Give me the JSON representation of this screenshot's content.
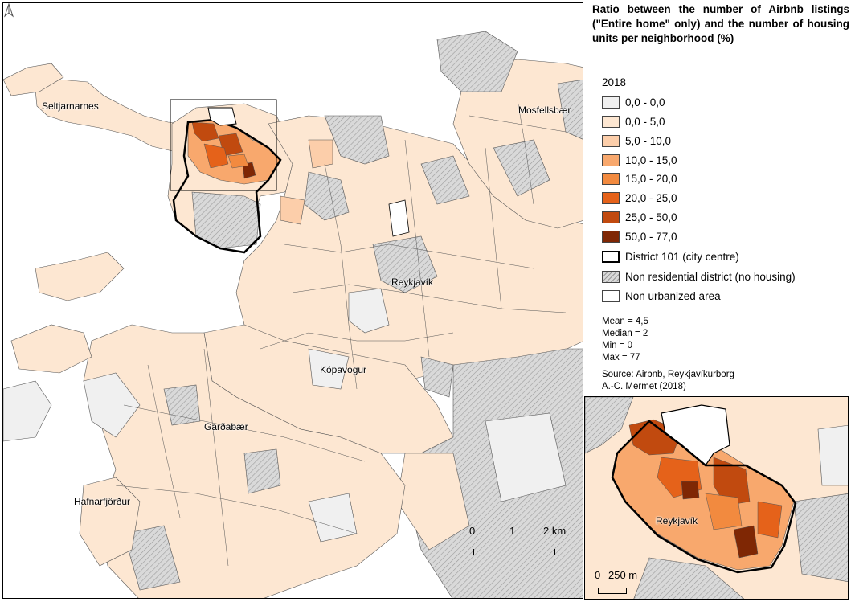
{
  "legend": {
    "title": "Ratio between the number of Airbnb listings (\"Entire home\" only) and the number of housing units per neighborhood (%)",
    "year": "2018",
    "classes": [
      {
        "label": "0,0 - 0,0",
        "color": "#f0f0f0"
      },
      {
        "label": "0,0 - 5,0",
        "color": "#fde7d2"
      },
      {
        "label": "5,0 - 10,0",
        "color": "#fcceaa"
      },
      {
        "label": "10,0 - 15,0",
        "color": "#f8a86d"
      },
      {
        "label": "15,0 - 20,0",
        "color": "#f28a3f"
      },
      {
        "label": "20,0 - 25,0",
        "color": "#e5621a"
      },
      {
        "label": "25,0 - 50,0",
        "color": "#c14a0f"
      },
      {
        "label": "50,0 - 77,0",
        "color": "#7f2704"
      }
    ],
    "district_label": "District 101 (city centre)",
    "nonres_label": "Non residential district (no housing)",
    "nonurban_label": "Non urbanized area"
  },
  "stats": {
    "mean": "Mean = 4,5",
    "median": "Median = 2",
    "min": "Min = 0",
    "max": "Max = 77"
  },
  "source": {
    "line1": "Source: Airbnb, Reykjavíkurborg",
    "line2": "A.-C. Mermet (2018)"
  },
  "places": {
    "seltjarnarnes": "Seltjarnarnes",
    "mosfellsbaer": "Mosfellsbær",
    "reykjavik": "Reykjavík",
    "kopavogur": "Kópavogur",
    "gardabaer": "Garðabær",
    "hafnarfjordur": "Hafnarfjörður",
    "inset_reykjavik": "Reykjavík"
  },
  "scale": {
    "t0": "0",
    "t1": "1",
    "t2": "2 km"
  },
  "inset_scale": {
    "t0": "0",
    "t1": "250 m"
  },
  "north_icon": "north-arrow-icon"
}
